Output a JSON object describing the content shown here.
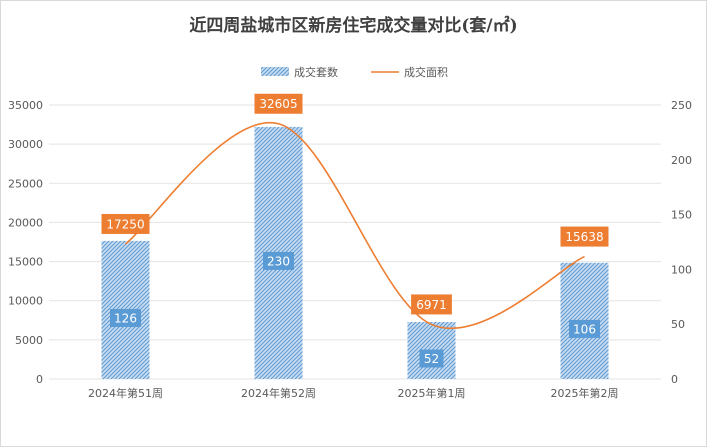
{
  "chart_data": {
    "type": "bar",
    "title": "近四周盐城市区新房住宅成交量对比(套/㎡)",
    "categories": [
      "2024年第51周",
      "2024年第52周",
      "2025年第1周",
      "2025年第2周"
    ],
    "series": [
      {
        "name": "成交套数",
        "type": "bar",
        "axis": "right",
        "values": [
          126,
          230,
          52,
          106
        ],
        "color": "#5b9bd5"
      },
      {
        "name": "成交面积",
        "type": "line",
        "axis": "left",
        "smooth": true,
        "values": [
          17250,
          32605,
          6971,
          15638
        ],
        "color": "#ed7d31"
      }
    ],
    "y_left": {
      "min": 0,
      "max": 35000,
      "ticks": [
        "0",
        "5000",
        "10000",
        "15000",
        "20000",
        "25000",
        "30000",
        "35000"
      ]
    },
    "y_right": {
      "min": 0,
      "max": 250,
      "ticks": [
        "0",
        "50",
        "100",
        "150",
        "200",
        "250"
      ]
    },
    "grid": true,
    "legend": "top-center"
  }
}
